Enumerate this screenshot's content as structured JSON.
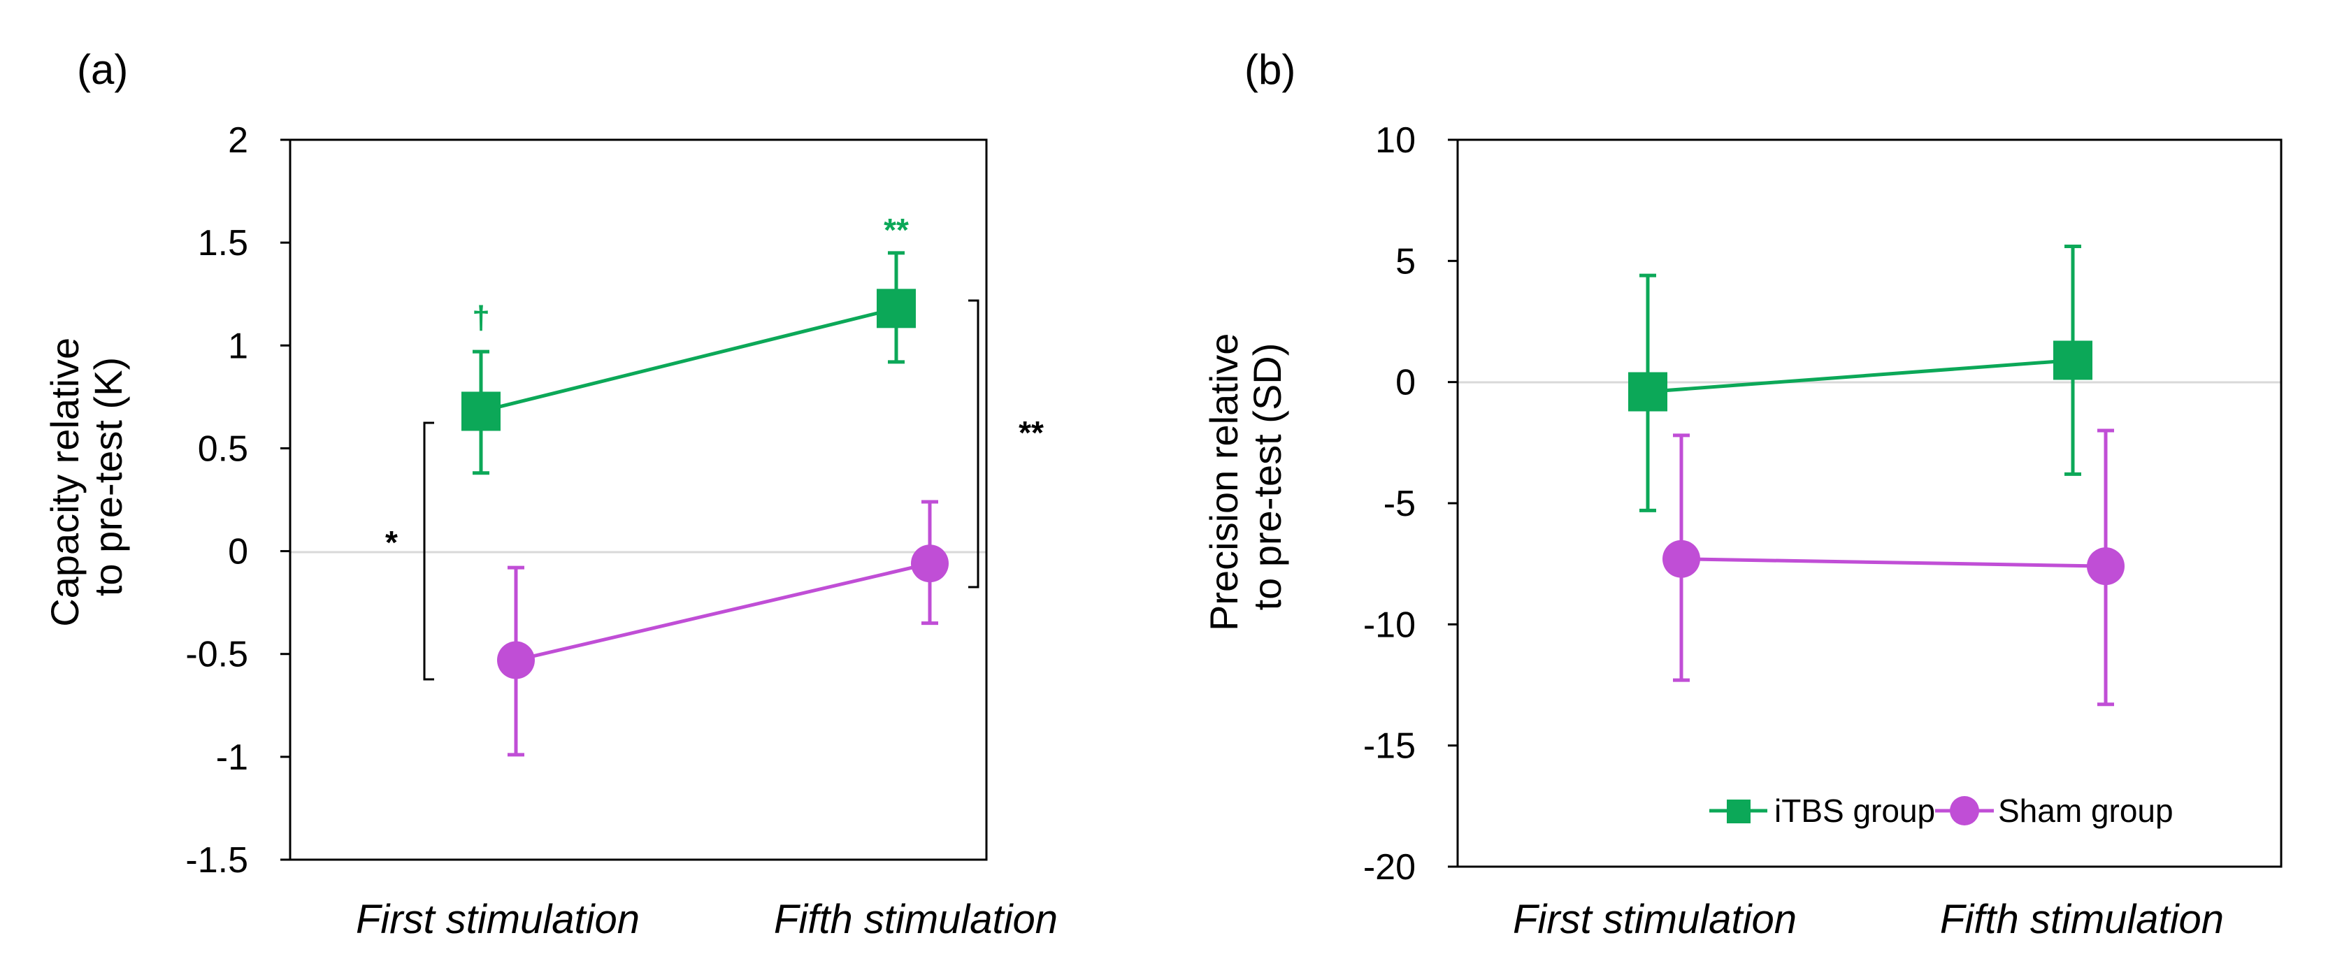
{
  "colors": {
    "itbs": "#0ca858",
    "sham": "#c04ed6",
    "axis": "#000000",
    "zero": "#d9d9d9"
  },
  "legend": {
    "itbs": "iTBS group",
    "sham": "Sham group"
  },
  "chart_data": [
    {
      "panel": "(a)",
      "type": "line",
      "categories": [
        "First stimulation",
        "Fifth stimulation"
      ],
      "ylabel_line1": "Capacity relative",
      "ylabel_line2": "to pre-test (K)",
      "ylim": [
        -1.5,
        2
      ],
      "yticks": [
        2,
        1.5,
        1,
        0.5,
        0,
        -0.5,
        -1,
        -1.5
      ],
      "ytick_labels": [
        "2",
        "1.5",
        "1",
        "0.5",
        "0",
        "-0.5",
        "-1",
        "-1.5"
      ],
      "series": [
        {
          "name": "iTBS group",
          "marker": "square",
          "values": [
            0.68,
            1.18
          ],
          "lower": [
            0.38,
            0.92
          ],
          "upper": [
            0.97,
            1.45
          ]
        },
        {
          "name": "Sham group",
          "marker": "circle",
          "values": [
            -0.53,
            -0.06
          ],
          "lower": [
            -0.99,
            -0.35
          ],
          "upper": [
            -0.08,
            0.24
          ]
        }
      ],
      "annotations": {
        "dagger": "†",
        "itbs_fifth": "**",
        "first_bracket": "*",
        "fifth_bracket": "**"
      }
    },
    {
      "panel": "(b)",
      "type": "line",
      "categories": [
        "First stimulation",
        "Fifth stimulation"
      ],
      "ylabel_line1": "Precision relative",
      "ylabel_line2": "to pre-test (SD)",
      "ylim": [
        -20,
        10
      ],
      "yticks": [
        10,
        5,
        0,
        -5,
        -10,
        -15,
        -20
      ],
      "ytick_labels": [
        "10",
        "5",
        "0",
        "-5",
        "-10",
        "-15",
        "-20"
      ],
      "series": [
        {
          "name": "iTBS group",
          "marker": "square",
          "values": [
            -0.4,
            0.9
          ],
          "lower": [
            -5.3,
            -3.8
          ],
          "upper": [
            4.4,
            5.6
          ]
        },
        {
          "name": "Sham group",
          "marker": "circle",
          "values": [
            -7.3,
            -7.6
          ],
          "lower": [
            -12.3,
            -13.3
          ],
          "upper": [
            -2.2,
            -2.0
          ]
        }
      ]
    }
  ]
}
